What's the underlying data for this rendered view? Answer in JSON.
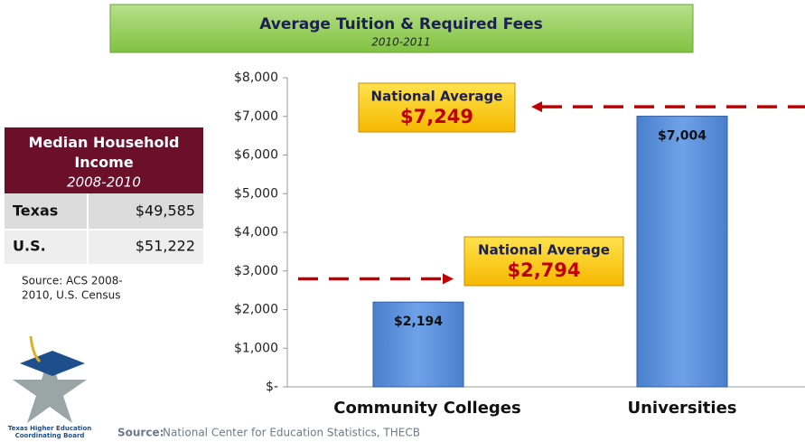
{
  "chart_data": {
    "type": "bar",
    "title": "Average Tuition & Required  Fees",
    "subtitle": "2010-2011",
    "categories": [
      "Community Colleges",
      "Universities"
    ],
    "values": [
      2194,
      7004
    ],
    "value_labels": [
      "$2,194",
      "$7,004"
    ],
    "color": "#5b8fd9",
    "ylim": [
      0,
      8000
    ],
    "yticks": [
      {
        "value": 0,
        "label": "$-"
      },
      {
        "value": 1000,
        "label": "$1,000"
      },
      {
        "value": 2000,
        "label": "$2,000"
      },
      {
        "value": 3000,
        "label": "$3,000"
      },
      {
        "value": 4000,
        "label": "$4,000"
      },
      {
        "value": 5000,
        "label": "$5,000"
      },
      {
        "value": 6000,
        "label": "$6,000"
      },
      {
        "value": 7000,
        "label": "$7,000"
      },
      {
        "value": 8000,
        "label": "$8,000"
      }
    ],
    "reference_lines": [
      {
        "label": "National Average",
        "value": 2794,
        "value_label": "$2,794",
        "color": "#c00000"
      },
      {
        "label": "National Average",
        "value": 7249,
        "value_label": "$7,249",
        "color": "#c00000"
      }
    ],
    "source_label": "Source:",
    "source": "National Center for Education Statistics, THECB"
  },
  "income_table": {
    "title": "Median Household Income",
    "subtitle": "2008-2010",
    "rows": [
      [
        "Texas",
        "$49,585"
      ],
      [
        "U.S.",
        "$51,222"
      ]
    ],
    "source_lines": [
      "Source: ACS 2008-",
      "2010, U.S. Census"
    ]
  },
  "logo": {
    "lines": [
      "Texas Higher Education",
      "Coordinating Board"
    ]
  }
}
